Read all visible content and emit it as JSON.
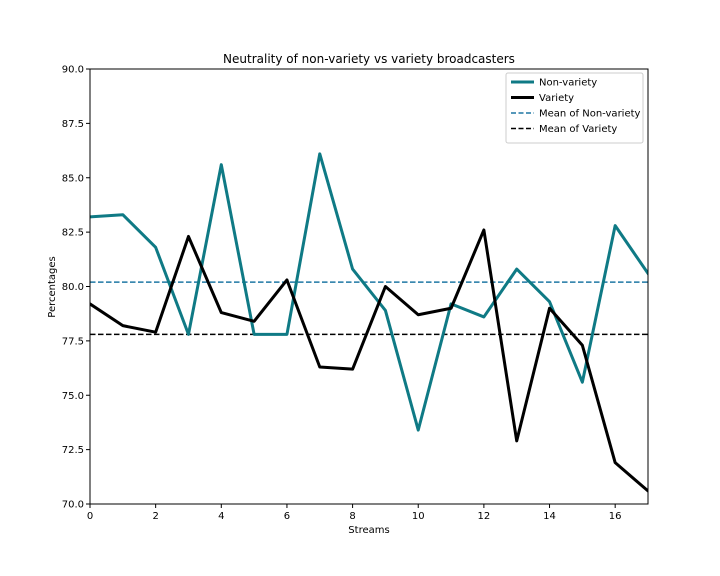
{
  "chart_data": {
    "type": "line",
    "title": "Neutrality of non-variety vs variety broadcasters",
    "xlabel": "Streams",
    "ylabel": "Percentages",
    "xlim": [
      0,
      17
    ],
    "ylim": [
      70.0,
      90.0
    ],
    "x_ticks": [
      0,
      2,
      4,
      6,
      8,
      10,
      12,
      14,
      16
    ],
    "y_ticks": [
      70.0,
      72.5,
      75.0,
      77.5,
      80.0,
      82.5,
      85.0,
      87.5,
      90.0
    ],
    "x_tick_labels": [
      "0",
      "2",
      "4",
      "6",
      "8",
      "10",
      "12",
      "14",
      "16"
    ],
    "y_tick_labels": [
      "70.0",
      "72.5",
      "75.0",
      "77.5",
      "80.0",
      "82.5",
      "85.0",
      "87.5",
      "90.0"
    ],
    "grid": false,
    "legend_position": "top-right",
    "x": [
      0,
      1,
      2,
      3,
      4,
      5,
      6,
      7,
      8,
      9,
      10,
      11,
      12,
      13,
      14,
      15,
      16,
      17
    ],
    "series": [
      {
        "name": "Non-variety",
        "color": "#0f7a85",
        "style": "solid",
        "values": [
          83.2,
          83.3,
          81.8,
          77.8,
          85.6,
          77.8,
          77.8,
          86.1,
          80.8,
          78.9,
          73.4,
          79.2,
          78.6,
          80.8,
          79.3,
          75.6,
          82.8,
          80.6
        ]
      },
      {
        "name": "Variety",
        "color": "#000000",
        "style": "solid",
        "values": [
          79.2,
          78.2,
          77.9,
          82.3,
          78.8,
          78.4,
          80.3,
          76.3,
          76.2,
          80.0,
          78.7,
          79.0,
          82.6,
          72.9,
          79.0,
          77.3,
          71.9,
          70.6
        ]
      }
    ],
    "reference_lines": [
      {
        "name": "Mean of Non-variety",
        "value": 80.2,
        "color": "#1f77a4",
        "style": "dashed"
      },
      {
        "name": "Mean of Variety",
        "value": 77.8,
        "color": "#000000",
        "style": "dashed"
      }
    ]
  }
}
